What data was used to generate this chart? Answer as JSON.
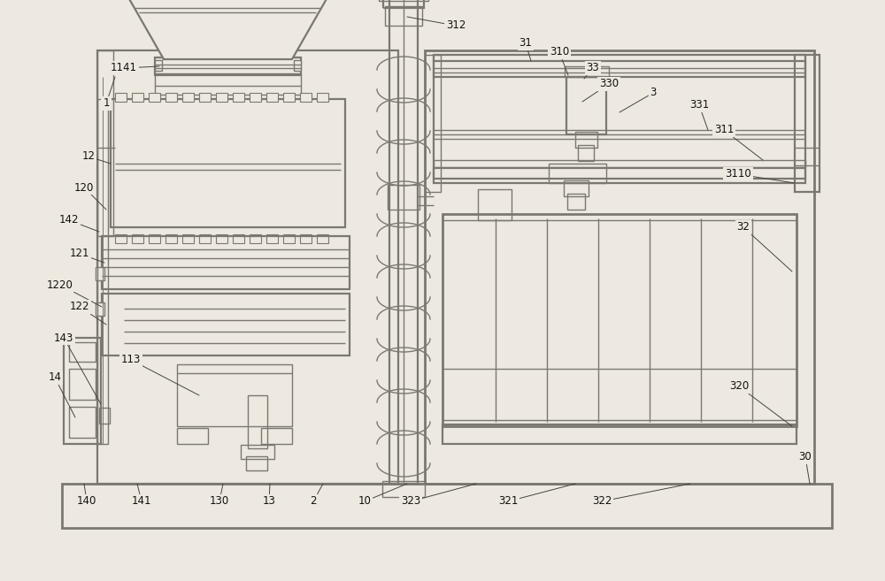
{
  "bg_color": "#ede9e0",
  "line_color": "#7a7870",
  "line_width": 1.0,
  "text_color": "#111111",
  "font_size": 8.5,
  "fig_w": 10.0,
  "fig_h": 6.57
}
